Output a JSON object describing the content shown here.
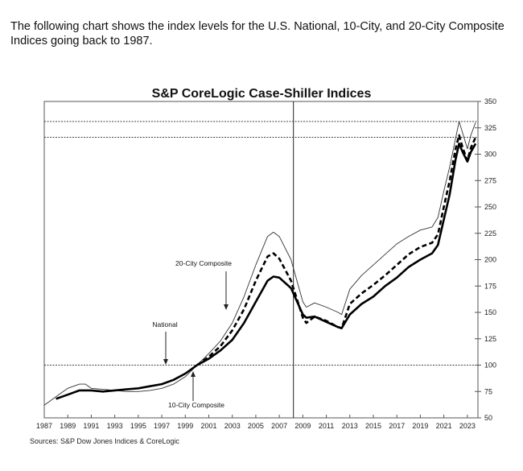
{
  "intro_text": "The following chart shows the index levels for the U.S. National, 10-City, and 20-City Composite Indices going back to 1987.",
  "chart_data": {
    "type": "line",
    "title": "S&P CoreLogic Case-Shiller Indices",
    "xlabel": "",
    "ylabel": "",
    "xlim": [
      1987,
      2023.9
    ],
    "ylim": [
      50,
      350
    ],
    "y_axis_side": "right",
    "x_ticks": [
      "1987",
      "1989",
      "1991",
      "1993",
      "1995",
      "1997",
      "1999",
      "2001",
      "2003",
      "2005",
      "2007",
      "2009",
      "2011",
      "2013",
      "2015",
      "2017",
      "2019",
      "2021",
      "2023"
    ],
    "y_ticks": [
      50,
      75,
      100,
      125,
      150,
      175,
      200,
      225,
      250,
      275,
      300,
      325,
      350
    ],
    "reference_lines": {
      "horizontal": [
        100,
        316,
        331
      ],
      "vertical": [
        2008.2
      ]
    },
    "source": "Sources:  S&P Dow Jones Indices & CoreLogic",
    "annotations": [
      {
        "label": "20-City Composite",
        "points_to": "20-City Composite"
      },
      {
        "label": "National",
        "points_to": "National"
      },
      {
        "label": "10-City Composite",
        "points_to": "10-City Composite"
      }
    ],
    "series": [
      {
        "name": "10-City Composite",
        "style": "thin-solid",
        "x": [
          1987,
          1988,
          1989,
          1990,
          1990.5,
          1991,
          1992,
          1993,
          1994,
          1995,
          1996,
          1997,
          1998,
          1999,
          2000,
          2001,
          2002,
          2003,
          2004,
          2005,
          2006,
          2006.5,
          2007,
          2008,
          2009,
          2009.3,
          2010,
          2011,
          2012,
          2012.3,
          2013,
          2014,
          2015,
          2016,
          2017,
          2018,
          2019,
          2020,
          2020.5,
          2021,
          2021.5,
          2022,
          2022.3,
          2022.6,
          2023,
          2023.3,
          2023.7
        ],
        "y": [
          62,
          70,
          78,
          82,
          82,
          78,
          77,
          76,
          75,
          75,
          76,
          78,
          82,
          89,
          100,
          111,
          123,
          140,
          165,
          195,
          222,
          226,
          222,
          200,
          160,
          155,
          159,
          155,
          150,
          148,
          172,
          185,
          195,
          205,
          215,
          222,
          228,
          231,
          240,
          265,
          288,
          315,
          331,
          320,
          305,
          318,
          330
        ]
      },
      {
        "name": "20-City Composite",
        "style": "thick-dashed",
        "x": [
          2000,
          2001,
          2002,
          2003,
          2004,
          2005,
          2006,
          2006.5,
          2007,
          2008,
          2009,
          2009.3,
          2010,
          2011,
          2012,
          2012.3,
          2013,
          2014,
          2015,
          2016,
          2017,
          2018,
          2019,
          2020,
          2020.5,
          2021,
          2021.5,
          2022,
          2022.3,
          2022.6,
          2023,
          2023.3,
          2023.7
        ],
        "y": [
          100,
          108,
          118,
          133,
          153,
          180,
          203,
          206,
          201,
          180,
          145,
          140,
          146,
          142,
          136,
          135,
          158,
          168,
          176,
          185,
          195,
          205,
          212,
          216,
          224,
          250,
          275,
          305,
          318,
          306,
          294,
          306,
          316
        ]
      },
      {
        "name": "National",
        "style": "thick-solid",
        "x": [
          1988,
          1989,
          1990,
          1991,
          1992,
          1993,
          1994,
          1995,
          1996,
          1997,
          1998,
          1999,
          2000,
          2001,
          2002,
          2003,
          2004,
          2005,
          2006,
          2006.5,
          2007,
          2008,
          2009,
          2009.3,
          2010,
          2011,
          2012,
          2012.3,
          2013,
          2014,
          2015,
          2016,
          2017,
          2018,
          2019,
          2020,
          2020.5,
          2021,
          2021.5,
          2022,
          2022.3,
          2022.6,
          2023,
          2023.3,
          2023.7
        ],
        "y": [
          68,
          72,
          76,
          76,
          75,
          76,
          77,
          78,
          80,
          82,
          86,
          92,
          100,
          106,
          114,
          124,
          140,
          160,
          180,
          184,
          183,
          173,
          148,
          145,
          146,
          141,
          136,
          135,
          148,
          158,
          165,
          175,
          183,
          193,
          200,
          206,
          214,
          238,
          262,
          295,
          310,
          302,
          293,
          302,
          310
        ]
      }
    ]
  }
}
